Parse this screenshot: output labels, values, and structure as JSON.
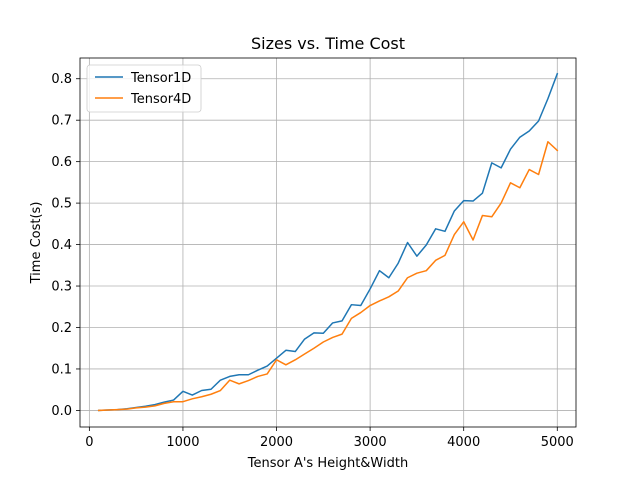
{
  "chart_data": {
    "type": "line",
    "title": "Sizes vs. Time Cost",
    "xlabel": "Tensor A's Height&Width",
    "ylabel": "Time Cost(s)",
    "xlim": [
      -100,
      5200
    ],
    "ylim": [
      -0.04,
      0.85
    ],
    "xticks": [
      0,
      1000,
      2000,
      3000,
      4000,
      5000
    ],
    "yticks": [
      0.0,
      0.1,
      0.2,
      0.3,
      0.4,
      0.5,
      0.6,
      0.7,
      0.8
    ],
    "xtick_labels": [
      "0",
      "1000",
      "2000",
      "3000",
      "4000",
      "5000"
    ],
    "ytick_labels": [
      "0.0",
      "0.1",
      "0.2",
      "0.3",
      "0.4",
      "0.5",
      "0.6",
      "0.7",
      "0.8"
    ],
    "grid": true,
    "legend": "top-left",
    "x": [
      100,
      200,
      300,
      400,
      500,
      600,
      700,
      800,
      900,
      1000,
      1100,
      1200,
      1300,
      1400,
      1500,
      1600,
      1700,
      1800,
      1900,
      2000,
      2100,
      2200,
      2300,
      2400,
      2500,
      2600,
      2700,
      2800,
      2900,
      3000,
      3100,
      3200,
      3300,
      3400,
      3500,
      3600,
      3700,
      3800,
      3900,
      4000,
      4100,
      4200,
      4300,
      4400,
      4500,
      4600,
      4700,
      4800,
      4900,
      5000
    ],
    "series": [
      {
        "name": "Tensor1D",
        "color": "#1f77b4",
        "values": [
          0.0,
          0.001,
          0.002,
          0.004,
          0.007,
          0.01,
          0.014,
          0.02,
          0.025,
          0.046,
          0.037,
          0.048,
          0.051,
          0.073,
          0.082,
          0.086,
          0.086,
          0.097,
          0.107,
          0.126,
          0.145,
          0.142,
          0.172,
          0.187,
          0.186,
          0.211,
          0.216,
          0.255,
          0.253,
          0.293,
          0.337,
          0.32,
          0.355,
          0.405,
          0.372,
          0.399,
          0.438,
          0.432,
          0.481,
          0.506,
          0.505,
          0.524,
          0.597,
          0.585,
          0.63,
          0.659,
          0.674,
          0.698,
          0.752,
          0.812
        ]
      },
      {
        "name": "Tensor4D",
        "color": "#ff7f0e",
        "values": [
          0.0,
          0.001,
          0.002,
          0.003,
          0.006,
          0.008,
          0.011,
          0.017,
          0.021,
          0.021,
          0.028,
          0.033,
          0.039,
          0.048,
          0.073,
          0.064,
          0.072,
          0.082,
          0.088,
          0.122,
          0.11,
          0.122,
          0.136,
          0.15,
          0.165,
          0.176,
          0.184,
          0.222,
          0.236,
          0.253,
          0.264,
          0.274,
          0.288,
          0.32,
          0.331,
          0.337,
          0.362,
          0.374,
          0.424,
          0.455,
          0.411,
          0.47,
          0.467,
          0.5,
          0.549,
          0.537,
          0.581,
          0.569,
          0.648,
          0.627
        ]
      }
    ]
  }
}
